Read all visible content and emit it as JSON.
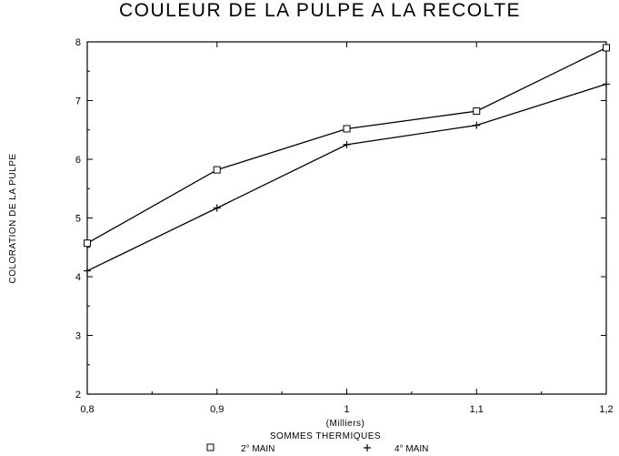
{
  "chart_data": {
    "type": "line",
    "title": "COULEUR DE LA PULPE A LA RECOLTE",
    "ylabel": "COLORATION DE LA PULPE",
    "xlabel_units": "(Milliers)",
    "xlabel": "SOMMES THERMIQUES",
    "x": [
      0.8,
      0.9,
      1.0,
      1.1,
      1.2
    ],
    "x_tick_labels": [
      "0,8",
      "0,9",
      "1",
      "1,1",
      "1,2"
    ],
    "y_ticks": [
      2,
      3,
      4,
      5,
      6,
      7,
      8
    ],
    "xlim": [
      0.8,
      1.2
    ],
    "ylim": [
      2,
      8
    ],
    "grid": false,
    "legend_position": "bottom",
    "series": [
      {
        "name": "2° MAIN",
        "marker": "square",
        "values": [
          4.57,
          5.82,
          6.52,
          6.82,
          7.9
        ]
      },
      {
        "name": "4° MAIN",
        "marker": "plus",
        "values": [
          4.1,
          5.17,
          6.25,
          6.58,
          7.28
        ]
      }
    ]
  }
}
